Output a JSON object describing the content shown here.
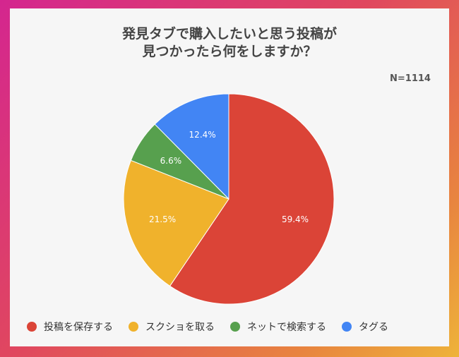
{
  "chart_data": {
    "type": "pie",
    "title": [
      "発見タブで購入したいと思う投稿が",
      "見つかったら何をしますか？"
    ],
    "note": "N=1114",
    "categories": [
      "投稿を保存する",
      "スクショを取る",
      "ネットで検索する",
      "タグる"
    ],
    "values": [
      59.4,
      21.5,
      6.6,
      12.4
    ],
    "labels": [
      "59.4%",
      "21.5%",
      "6.6%",
      "12.4%"
    ],
    "colors": [
      "#db4437",
      "#f0b22c",
      "#57a04e",
      "#4285f4"
    ],
    "start": "12 o'clock",
    "direction": "clockwise",
    "legend": "bottom"
  }
}
